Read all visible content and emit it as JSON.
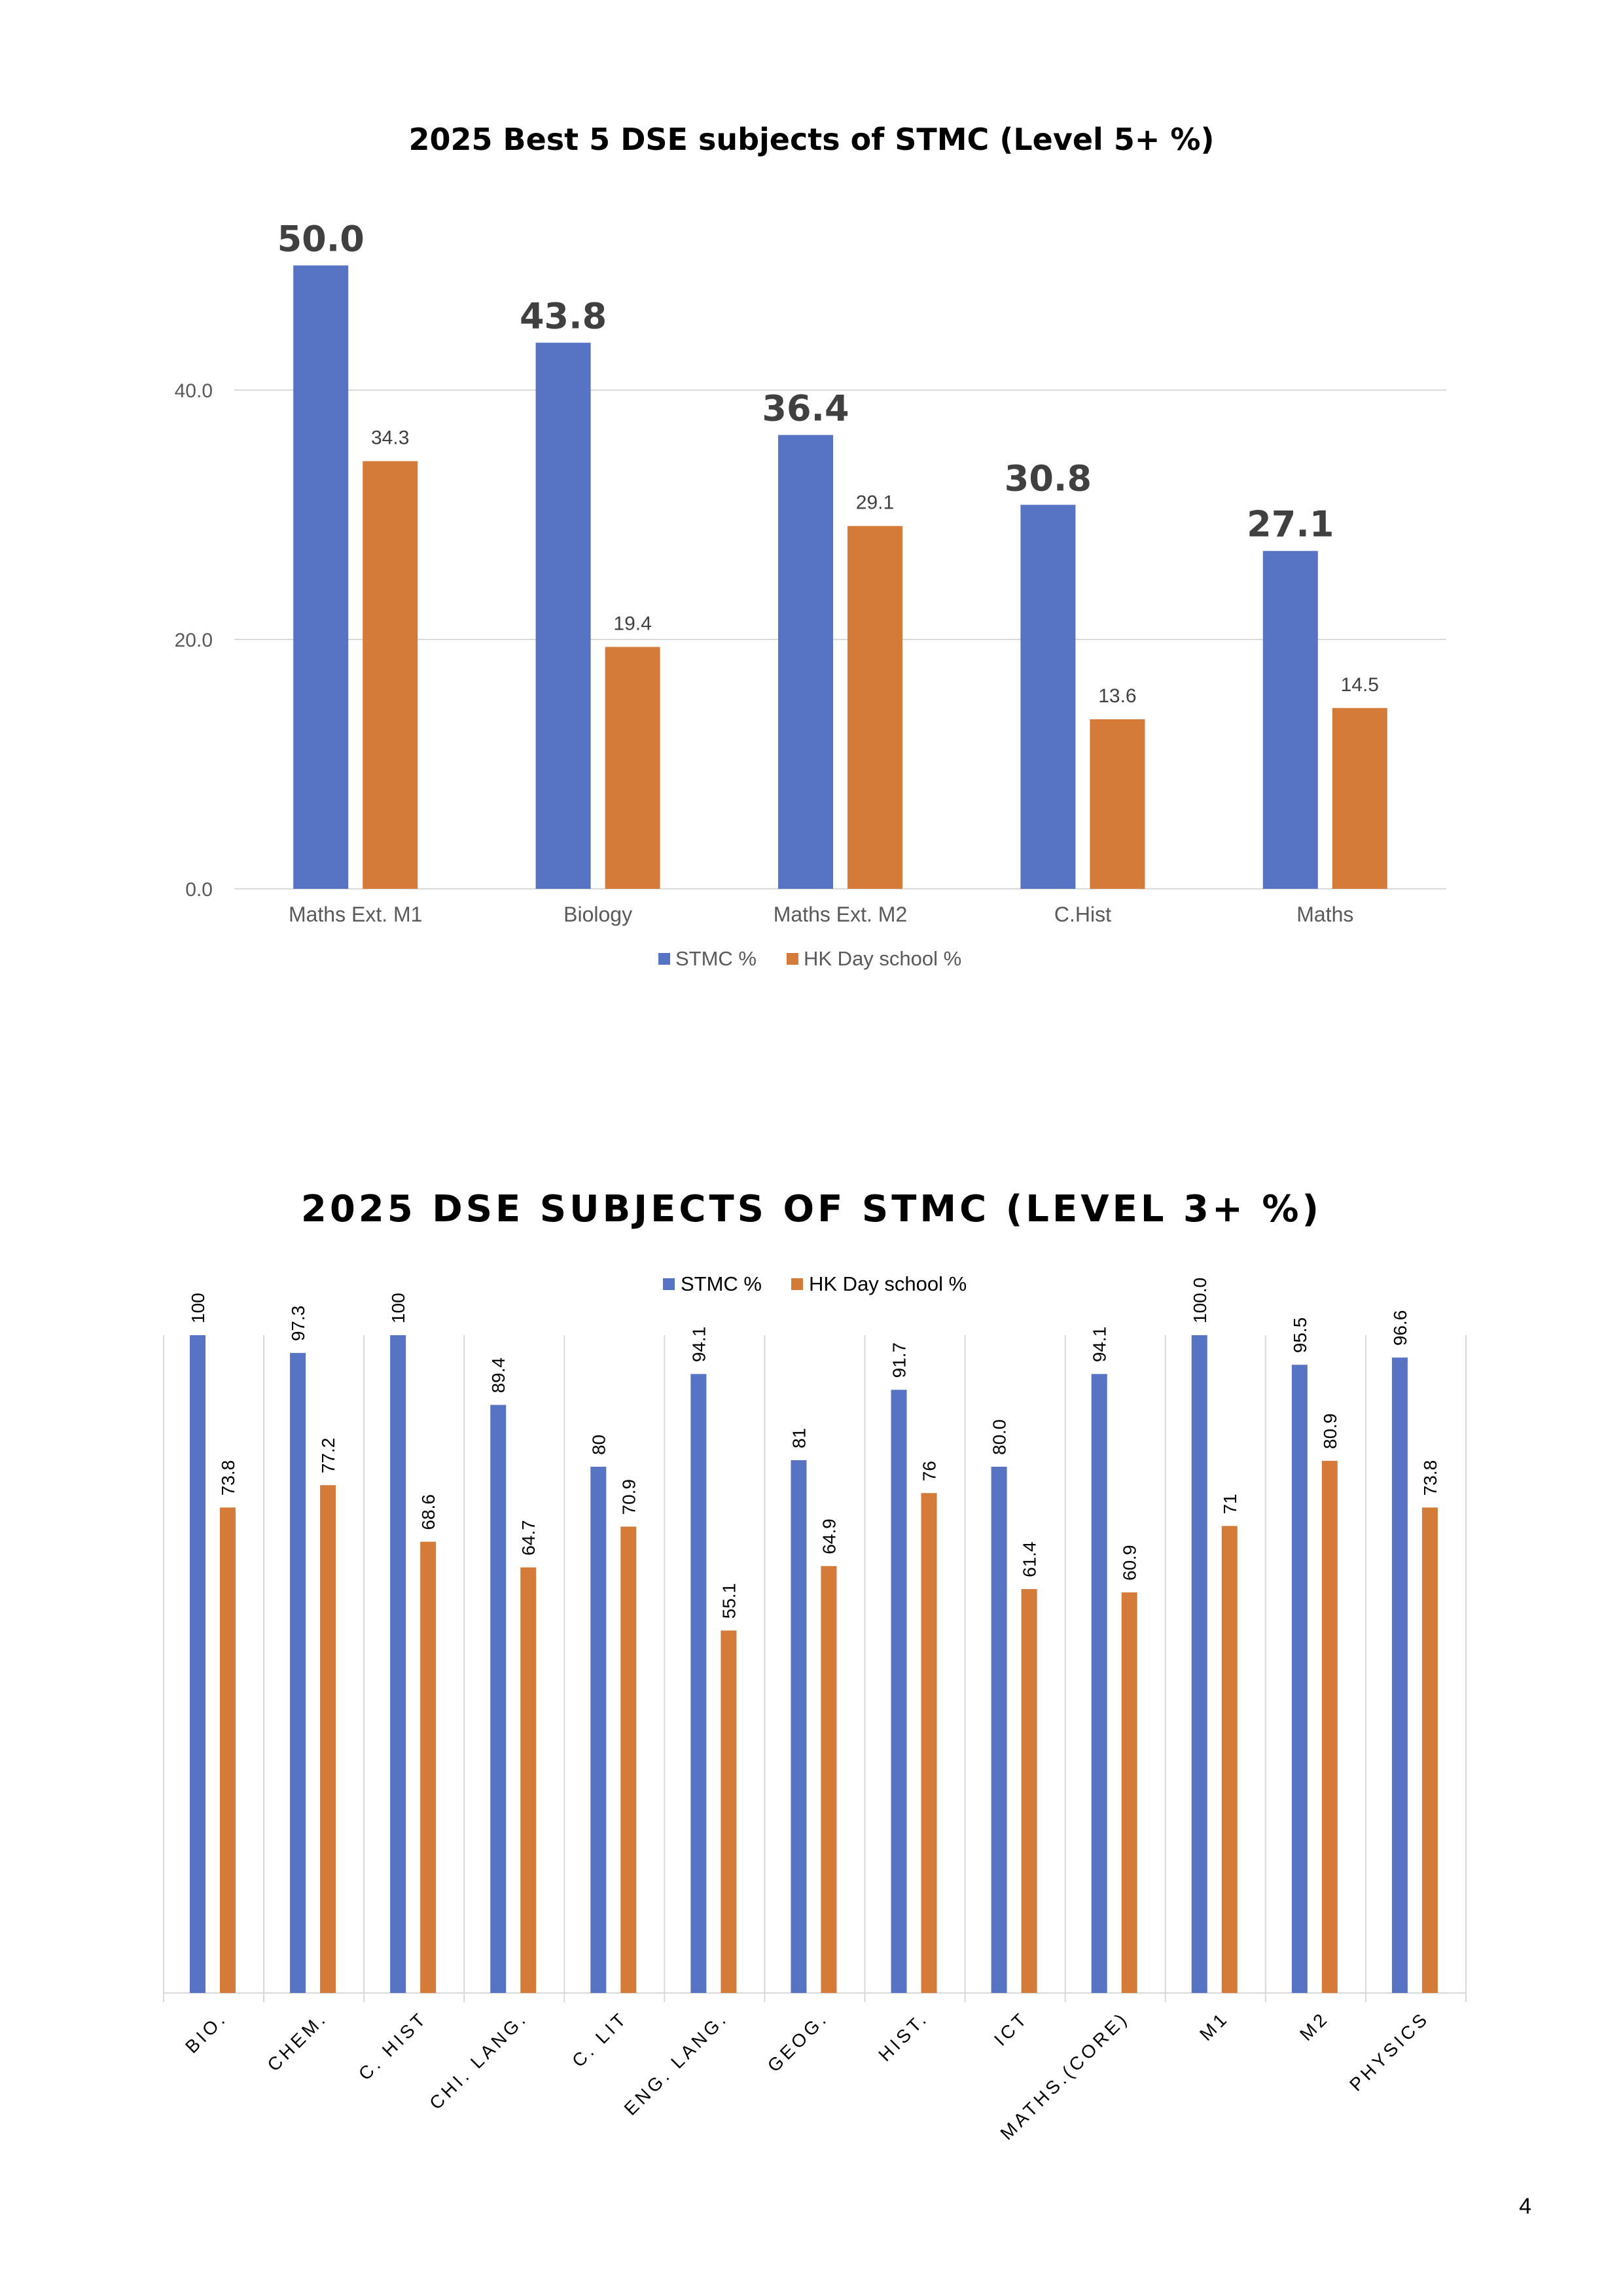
{
  "colors": {
    "stmc": "#5773C4",
    "hk": "#D57B3A",
    "grid": "#D9D9D9",
    "axis_text": "#595959"
  },
  "chart_data": [
    {
      "type": "bar",
      "title": "2025 Best 5 DSE subjects of STMC (Level 5+ %)",
      "categories": [
        "Maths Ext. M1",
        "Biology",
        "Maths Ext. M2",
        "C.Hist",
        "Maths"
      ],
      "series": [
        {
          "name": "STMC %",
          "values": [
            50.0,
            43.8,
            36.4,
            30.8,
            27.1
          ],
          "labels": [
            "50.0",
            "43.8",
            "36.4",
            "30.8",
            "27.1"
          ]
        },
        {
          "name": "HK Day school %",
          "values": [
            34.3,
            19.4,
            29.1,
            13.6,
            14.5
          ],
          "labels": [
            "34.3",
            "19.4",
            "29.1",
            "13.6",
            "14.5"
          ]
        }
      ],
      "yticks": [
        "0.0",
        "20.0",
        "40.0"
      ],
      "ylim": [
        0,
        53
      ],
      "grid": true,
      "legend": "bottom"
    },
    {
      "type": "bar",
      "title": "2025 DSE SUBJECTS OF STMC (LEVEL 3+ %)",
      "categories": [
        "BIO.",
        "CHEM.",
        "C. HIST",
        "CHI. LANG.",
        "C. LIT",
        "ENG. LANG.",
        "GEOG.",
        "HIST.",
        "ICT",
        "MATHS.(CORE)",
        "M1",
        "M2",
        "PHYSICS"
      ],
      "series": [
        {
          "name": "STMC %",
          "values": [
            100,
            97.3,
            100,
            89.4,
            80,
            94.1,
            81,
            91.7,
            80.0,
            94.1,
            100.0,
            95.5,
            96.6
          ],
          "labels": [
            "100",
            "97.3",
            "100",
            "89.4",
            "80",
            "94.1",
            "81",
            "91.7",
            "80.0",
            "94.1",
            "100.0",
            "95.5",
            "96.6"
          ]
        },
        {
          "name": "HK Day school %",
          "values": [
            73.8,
            77.2,
            68.6,
            64.7,
            70.9,
            55.1,
            64.9,
            76,
            61.4,
            60.9,
            71,
            80.9,
            73.8
          ],
          "labels": [
            "73.8",
            "77.2",
            "68.6",
            "64.7",
            "70.9",
            "55.1",
            "64.9",
            "76",
            "61.4",
            "60.9",
            "71",
            "80.9",
            "73.8"
          ]
        }
      ],
      "ylim": [
        0,
        100
      ],
      "grid": false,
      "legend": "top"
    }
  ],
  "page_number": "4"
}
